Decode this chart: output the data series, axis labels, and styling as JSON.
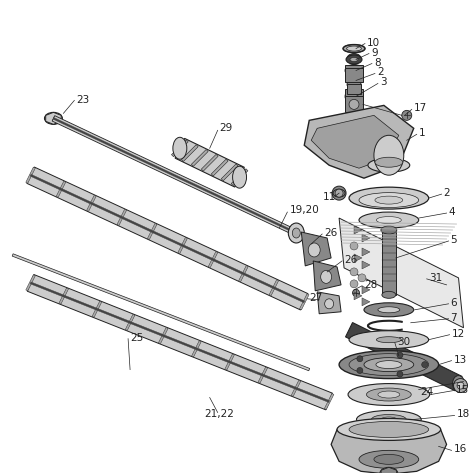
{
  "bg_color": "#ffffff",
  "fig_width": 4.74,
  "fig_height": 4.74,
  "dpi": 100,
  "line_color": "#222222",
  "part_color": "#888888",
  "part_color_dark": "#444444",
  "part_color_light": "#cccccc",
  "part_color_mid": "#aaaaaa"
}
